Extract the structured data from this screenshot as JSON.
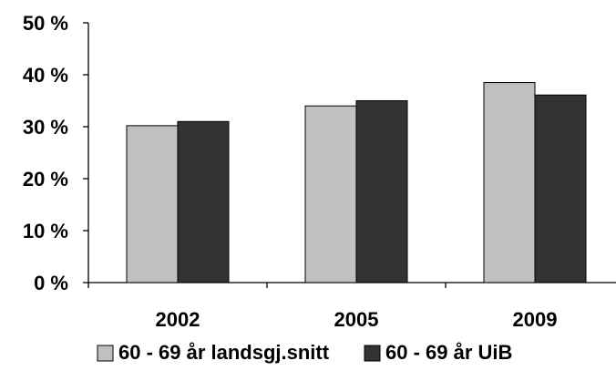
{
  "chart_data": {
    "type": "bar",
    "categories": [
      "2002",
      "2005",
      "2009"
    ],
    "series": [
      {
        "name": "60 - 69 år landsgj.snitt",
        "values": [
          30.2,
          34.0,
          38.5
        ],
        "color": "#c0c0c0"
      },
      {
        "name": "60 - 69 år UiB",
        "values": [
          31.0,
          35.0,
          36.1
        ],
        "color": "#333333"
      }
    ],
    "yticks": [
      0,
      10,
      20,
      30,
      40,
      50
    ],
    "ytick_labels": [
      "0 %",
      "10 %",
      "20 %",
      "30 %",
      "40 %",
      "50 %"
    ],
    "ylim": [
      0,
      50
    ],
    "grid": false,
    "legend_position": "bottom",
    "title": "",
    "xlabel": "",
    "ylabel": ""
  }
}
